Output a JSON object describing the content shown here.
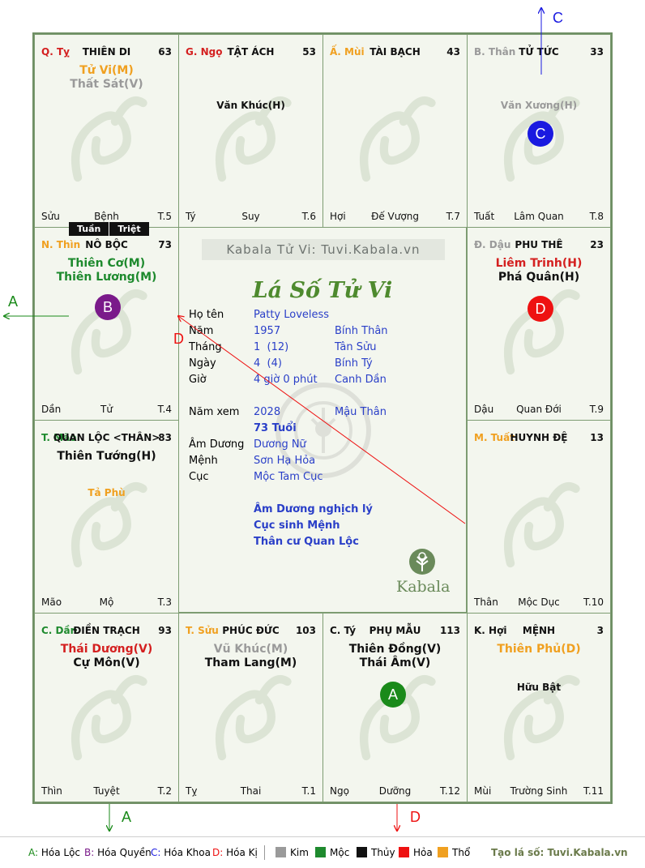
{
  "brand_banner": "Kabala Tử Vi: Tuvi.Kabala.vn",
  "chart_title": "Lá Số Tử Vi",
  "logo_text": "Kabala",
  "tuan_triet": [
    "Tuần",
    "Triệt"
  ],
  "palaces": [
    {
      "branch": "Q. Tỵ",
      "branch_color": "#d42020",
      "name": "THIÊN DI",
      "age": "63",
      "stars": [
        {
          "text": "Tử Vi(M)",
          "color": "#f0a020"
        },
        {
          "text": "Thất Sát(V)",
          "color": "#9a9a9a"
        }
      ],
      "minor": [],
      "foot_l": "Sửu",
      "foot_c": "Bệnh",
      "foot_r": "T.5"
    },
    {
      "branch": "G. Ngọ",
      "branch_color": "#d42020",
      "name": "TẬT ÁCH",
      "age": "53",
      "stars": [],
      "minor": [
        {
          "text": "Văn Khúc(H)",
          "color": "#111111"
        }
      ],
      "foot_l": "Tý",
      "foot_c": "Suy",
      "foot_r": "T.6"
    },
    {
      "branch": "Ấ. Mùi",
      "branch_color": "#f0a020",
      "name": "TÀI BẠCH",
      "age": "43",
      "stars": [],
      "minor": [],
      "foot_l": "Hợi",
      "foot_c": "Đế Vượng",
      "foot_r": "T.7"
    },
    {
      "branch": "B. Thân",
      "branch_color": "#9a9a9a",
      "name": "TỬ TỨC",
      "age": "33",
      "stars": [],
      "minor": [
        {
          "text": "Văn Xương(H)",
          "color": "#9a9a9a"
        }
      ],
      "foot_l": "Tuất",
      "foot_c": "Lâm Quan",
      "foot_r": "T.8"
    },
    {
      "branch": "N. Thìn",
      "branch_color": "#f0a020",
      "name": "NÔ BỘC",
      "age": "73",
      "stars": [
        {
          "text": "Thiên Cơ(M)",
          "color": "#1e8a2e"
        },
        {
          "text": "Thiên Lương(M)",
          "color": "#1e8a2e"
        }
      ],
      "minor": [],
      "foot_l": "Dần",
      "foot_c": "Tử",
      "foot_r": "T.4"
    },
    {
      "branch": "Đ. Dậu",
      "branch_color": "#9a9a9a",
      "name": "PHU THÊ",
      "age": "23",
      "stars": [
        {
          "text": "Liêm Trinh(H)",
          "color": "#d42020"
        },
        {
          "text": "Phá Quân(H)",
          "color": "#111111"
        }
      ],
      "minor": [],
      "foot_l": "Dậu",
      "foot_c": "Quan Đới",
      "foot_r": "T.9"
    },
    {
      "branch": "T. Mão",
      "branch_color": "#1e8a2e",
      "name": "QUAN LỘC <THÂN>",
      "age": "83",
      "stars": [
        {
          "text": "Thiên Tướng(H)",
          "color": "#111111"
        }
      ],
      "minor": [
        {
          "text": "Tả Phù",
          "color": "#f0a020"
        }
      ],
      "foot_l": "Mão",
      "foot_c": "Mộ",
      "foot_r": "T.3"
    },
    {
      "branch": "M. Tuất",
      "branch_color": "#f0a020",
      "name": "HUYNH ĐỆ",
      "age": "13",
      "stars": [],
      "minor": [],
      "foot_l": "Thân",
      "foot_c": "Mộc Dục",
      "foot_r": "T.10"
    },
    {
      "branch": "C. Dần",
      "branch_color": "#1e8a2e",
      "name": "ĐIỀN TRẠCH",
      "age": "93",
      "stars": [
        {
          "text": "Thái Dương(V)",
          "color": "#d42020"
        },
        {
          "text": "Cự Môn(V)",
          "color": "#111111"
        }
      ],
      "minor": [],
      "foot_l": "Thìn",
      "foot_c": "Tuyệt",
      "foot_r": "T.2"
    },
    {
      "branch": "T. Sửu",
      "branch_color": "#f0a020",
      "name": "PHÚC ĐỨC",
      "age": "103",
      "stars": [
        {
          "text": "Vũ Khúc(M)",
          "color": "#9a9a9a"
        },
        {
          "text": "Tham Lang(M)",
          "color": "#111111"
        }
      ],
      "minor": [],
      "foot_l": "Tỵ",
      "foot_c": "Thai",
      "foot_r": "T.1"
    },
    {
      "branch": "C. Tý",
      "branch_color": "#111111",
      "name": "PHỤ MẪU",
      "age": "113",
      "stars": [
        {
          "text": "Thiên Đồng(V)",
          "color": "#111111"
        },
        {
          "text": "Thái Âm(V)",
          "color": "#111111"
        }
      ],
      "minor": [],
      "foot_l": "Ngọ",
      "foot_c": "Dưỡng",
      "foot_r": "T.12"
    },
    {
      "branch": "K. Hợi",
      "branch_color": "#111111",
      "name": "MỆNH",
      "age": "3",
      "stars": [
        {
          "text": "Thiên Phủ(D)",
          "color": "#f0a020"
        }
      ],
      "minor": [
        {
          "text": "Hữu Bật",
          "color": "#111111"
        }
      ],
      "foot_l": "Mùi",
      "foot_c": "Trường Sinh",
      "foot_r": "T.11"
    }
  ],
  "badges": [
    {
      "letter": "A",
      "color": "#1a8a1a"
    },
    {
      "letter": "B",
      "color": "#7a1a8a"
    },
    {
      "letter": "C",
      "color": "#1a1ae0"
    },
    {
      "letter": "D",
      "color": "#ee1111"
    }
  ],
  "info": {
    "ho_ten": {
      "label": "Họ tên",
      "value": "Patty Loveless"
    },
    "nam": {
      "label": "Năm",
      "value": "1957",
      "canchi": "Bính Thân"
    },
    "thang": {
      "label": "Tháng",
      "value": "1  (12)",
      "canchi": "Tân Sửu"
    },
    "ngay": {
      "label": "Ngày",
      "value": "4  (4)",
      "canchi": "Bính Tý"
    },
    "gio": {
      "label": "Giờ",
      "value": "4 giờ 0 phút",
      "canchi": "Canh Dần"
    },
    "nam_xem": {
      "label": "Năm xem",
      "value": "2028",
      "canchi": "Mậu Thân"
    },
    "tuoi": "73 Tuổi",
    "am_duong": {
      "label": "Âm Dương",
      "value": "Dương Nữ"
    },
    "menh": {
      "label": "Mệnh",
      "value": "Sơn Hạ Hỏa"
    },
    "cuc": {
      "label": "Cục",
      "value": "Mộc Tam Cục"
    },
    "notes": [
      "Âm Dương nghịch lý",
      "Cục sinh Mệnh",
      "Thân cư Quan Lộc"
    ]
  },
  "arrow_labels": {
    "a_left": "A",
    "a_bottom": "A",
    "c_top": "C",
    "d_center": "D",
    "d_bottom": "D"
  },
  "colors": {
    "hoa_loc": "#1a8a1a",
    "hoa_quyen": "#7a1a8a",
    "hoa_khoa": "#1a1ae0",
    "hoa_ki": "#ee1111",
    "grid": "#7d9c72",
    "panel": "#f3f6ee"
  },
  "legend": {
    "hoa": [
      {
        "key": "A:",
        "label": "Hóa Lộc",
        "color": "#1a8a1a"
      },
      {
        "key": "B:",
        "label": "Hóa Quyền",
        "color": "#7a1a8a"
      },
      {
        "key": "C:",
        "label": "Hóa Khoa",
        "color": "#1a1ae0"
      },
      {
        "key": "D:",
        "label": "Hóa Kị",
        "color": "#ee1111"
      }
    ],
    "elements": [
      {
        "label": "Kim",
        "color": "#9a9a9a"
      },
      {
        "label": "Mộc",
        "color": "#1e8a2e"
      },
      {
        "label": "Thủy",
        "color": "#111111"
      },
      {
        "label": "Hỏa",
        "color": "#ee1111"
      },
      {
        "label": "Thổ",
        "color": "#f0a020"
      }
    ],
    "site": "Tạo lá số: Tuvi.Kabala.vn"
  }
}
